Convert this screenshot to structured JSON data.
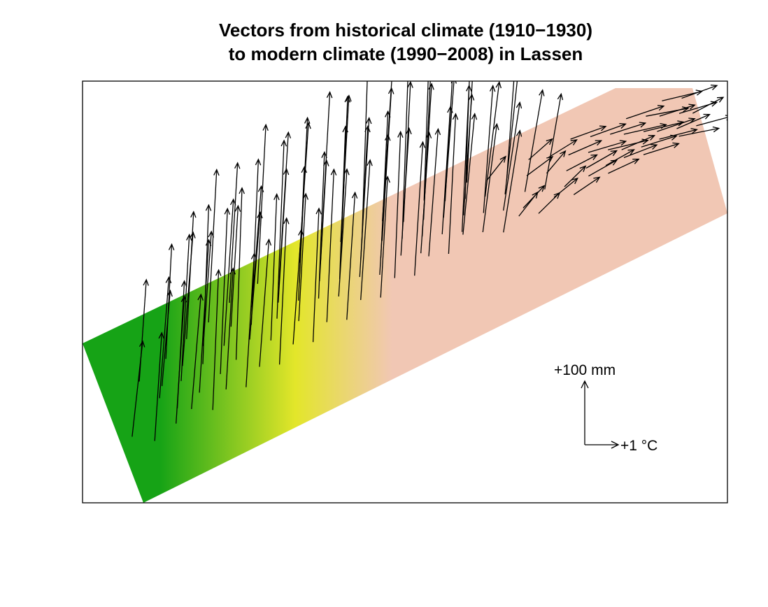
{
  "chart_data": {
    "type": "vector-field",
    "title_line1": "Vectors from historical climate (1910−1930)",
    "title_line2": "to modern climate (1990−2008) in Lassen",
    "xlabel": "",
    "ylabel": "",
    "grid": false,
    "colors": {
      "low": "#16a316",
      "mid": "#e3e62a",
      "high": "#f1c7b4",
      "arrow": "#000000",
      "frame": "#000000"
    },
    "scale_legend": {
      "precip_label": "+100 mm",
      "temp_label": "+1 °C",
      "precip_value": 100,
      "temp_value": 1
    },
    "vectors": [
      [
        0.02,
        0.62,
        0.9,
        150
      ],
      [
        0.06,
        0.34,
        0.6,
        160
      ],
      [
        0.08,
        0.48,
        0.8,
        190
      ],
      [
        0.09,
        0.42,
        0.7,
        150
      ],
      [
        0.1,
        0.58,
        0.6,
        200
      ],
      [
        0.11,
        0.28,
        0.5,
        180
      ],
      [
        0.12,
        0.44,
        0.7,
        230
      ],
      [
        0.13,
        0.36,
        0.9,
        210
      ],
      [
        0.14,
        0.55,
        0.8,
        240
      ],
      [
        0.15,
        0.22,
        0.6,
        200
      ],
      [
        0.16,
        0.4,
        0.5,
        250
      ],
      [
        0.17,
        0.3,
        0.7,
        180
      ],
      [
        0.18,
        0.5,
        0.6,
        260
      ],
      [
        0.19,
        0.18,
        0.7,
        240
      ],
      [
        0.2,
        0.35,
        0.8,
        230
      ],
      [
        0.21,
        0.46,
        0.5,
        270
      ],
      [
        0.22,
        0.26,
        0.6,
        190
      ],
      [
        0.23,
        0.12,
        0.7,
        220
      ],
      [
        0.24,
        0.38,
        0.9,
        200
      ],
      [
        0.25,
        0.3,
        0.6,
        260
      ],
      [
        0.26,
        0.2,
        0.8,
        190
      ],
      [
        0.27,
        0.44,
        0.5,
        230
      ],
      [
        0.28,
        0.08,
        0.7,
        250
      ],
      [
        0.29,
        0.33,
        0.6,
        280
      ],
      [
        0.3,
        0.24,
        0.7,
        210
      ],
      [
        0.31,
        0.14,
        0.8,
        240
      ],
      [
        0.32,
        0.4,
        0.6,
        200
      ],
      [
        0.33,
        0.28,
        0.5,
        210
      ],
      [
        0.34,
        0.18,
        0.7,
        260
      ],
      [
        0.35,
        0.06,
        0.8,
        220
      ],
      [
        0.36,
        0.32,
        0.5,
        230
      ],
      [
        0.37,
        0.22,
        0.6,
        190
      ],
      [
        0.38,
        0.12,
        0.8,
        270
      ],
      [
        0.39,
        0.36,
        0.7,
        200
      ],
      [
        0.4,
        0.26,
        0.5,
        240
      ],
      [
        0.41,
        0.16,
        0.6,
        260
      ],
      [
        0.42,
        0.04,
        0.7,
        230
      ],
      [
        0.43,
        0.3,
        0.8,
        250
      ],
      [
        0.44,
        0.2,
        0.6,
        210
      ],
      [
        0.45,
        0.1,
        0.5,
        280
      ],
      [
        0.46,
        0.34,
        0.7,
        220
      ],
      [
        0.47,
        0.24,
        0.6,
        230
      ],
      [
        0.48,
        0.14,
        0.8,
        240
      ],
      [
        0.49,
        0.02,
        0.9,
        250
      ],
      [
        0.5,
        0.28,
        0.7,
        200
      ],
      [
        0.51,
        0.18,
        0.5,
        260
      ],
      [
        0.52,
        0.08,
        0.6,
        220
      ],
      [
        0.53,
        0.32,
        0.7,
        190
      ],
      [
        0.54,
        0.22,
        0.8,
        240
      ],
      [
        0.55,
        0.12,
        0.6,
        230
      ],
      [
        0.56,
        0.0,
        0.5,
        270
      ],
      [
        0.57,
        0.26,
        0.7,
        200
      ],
      [
        0.58,
        0.16,
        0.9,
        220
      ],
      [
        0.59,
        0.06,
        0.8,
        250
      ],
      [
        0.6,
        0.3,
        0.6,
        230
      ],
      [
        0.61,
        0.2,
        0.7,
        190
      ],
      [
        0.62,
        0.1,
        0.5,
        260
      ],
      [
        0.63,
        -0.02,
        0.7,
        240
      ],
      [
        0.64,
        0.24,
        0.8,
        200
      ],
      [
        0.65,
        0.14,
        1.2,
        180
      ],
      [
        0.66,
        0.04,
        1.6,
        150
      ],
      [
        0.67,
        0.28,
        1.4,
        170
      ],
      [
        0.68,
        0.18,
        1.1,
        190
      ],
      [
        0.69,
        0.08,
        0.9,
        230
      ],
      [
        0.7,
        0.32,
        1.8,
        140
      ],
      [
        0.71,
        0.22,
        1.5,
        160
      ],
      [
        0.72,
        0.12,
        2.2,
        120
      ],
      [
        0.73,
        0.02,
        2.0,
        130
      ],
      [
        0.74,
        0.26,
        1.4,
        150
      ],
      [
        0.75,
        0.16,
        1.6,
        140
      ],
      [
        0.76,
        0.06,
        2.4,
        110
      ],
      [
        0.77,
        0.3,
        1.8,
        130
      ],
      [
        0.78,
        0.2,
        2.6,
        100
      ],
      [
        0.79,
        0.1,
        2.8,
        90
      ],
      [
        0.8,
        0.0,
        3.0,
        80
      ],
      [
        0.81,
        0.24,
        2.6,
        110
      ],
      [
        0.82,
        0.14,
        3.2,
        70
      ],
      [
        0.83,
        0.04,
        3.0,
        80
      ],
      [
        0.84,
        0.28,
        2.4,
        100
      ],
      [
        0.85,
        0.18,
        3.4,
        60
      ],
      [
        0.86,
        0.08,
        3.0,
        70
      ],
      [
        0.87,
        0.22,
        2.8,
        90
      ],
      [
        0.88,
        0.12,
        3.6,
        60
      ],
      [
        0.89,
        0.02,
        3.2,
        80
      ],
      [
        0.9,
        0.26,
        3.0,
        70
      ],
      [
        0.91,
        0.16,
        3.4,
        60
      ],
      [
        0.92,
        0.06,
        3.6,
        50
      ],
      [
        0.93,
        0.2,
        3.2,
        80
      ],
      [
        0.94,
        0.1,
        3.0,
        70
      ],
      [
        0.95,
        0.0,
        3.4,
        60
      ],
      [
        0.96,
        0.24,
        2.8,
        90
      ],
      [
        0.97,
        0.14,
        3.2,
        70
      ],
      [
        0.98,
        0.04,
        3.0,
        80
      ],
      [
        0.99,
        0.18,
        2.6,
        100
      ],
      [
        0.05,
        0.7,
        0.6,
        170
      ],
      [
        0.09,
        0.66,
        0.7,
        200
      ],
      [
        0.12,
        0.62,
        0.8,
        180
      ],
      [
        0.15,
        0.68,
        0.5,
        220
      ],
      [
        0.18,
        0.6,
        0.6,
        190
      ],
      [
        0.21,
        0.64,
        0.7,
        210
      ],
      [
        0.24,
        0.56,
        0.8,
        200
      ],
      [
        0.27,
        0.6,
        0.6,
        230
      ],
      [
        0.3,
        0.52,
        0.7,
        180
      ],
      [
        0.33,
        0.56,
        0.5,
        210
      ],
      [
        0.36,
        0.48,
        0.6,
        240
      ],
      [
        0.39,
        0.52,
        0.7,
        200
      ],
      [
        0.42,
        0.44,
        0.8,
        220
      ],
      [
        0.45,
        0.48,
        0.6,
        190
      ],
      [
        0.48,
        0.4,
        0.5,
        230
      ],
      [
        0.51,
        0.44,
        0.7,
        210
      ],
      [
        0.54,
        0.36,
        0.8,
        200
      ],
      [
        0.57,
        0.4,
        0.6,
        220
      ],
      [
        0.6,
        0.32,
        1.0,
        190
      ],
      [
        0.63,
        0.36,
        1.2,
        170
      ],
      [
        0.66,
        0.42,
        1.4,
        160
      ],
      [
        0.69,
        0.36,
        1.6,
        150
      ],
      [
        0.72,
        0.4,
        1.8,
        130
      ],
      [
        0.75,
        0.34,
        2.0,
        120
      ],
      [
        0.78,
        0.38,
        2.2,
        110
      ],
      [
        0.81,
        0.3,
        2.4,
        100
      ],
      [
        0.84,
        0.34,
        2.6,
        90
      ],
      [
        0.87,
        0.28,
        2.8,
        80
      ],
      [
        0.9,
        0.32,
        3.0,
        70
      ],
      [
        0.93,
        0.26,
        3.2,
        60
      ],
      [
        0.96,
        0.3,
        3.4,
        50
      ],
      [
        0.99,
        0.28,
        3.0,
        60
      ]
    ]
  }
}
